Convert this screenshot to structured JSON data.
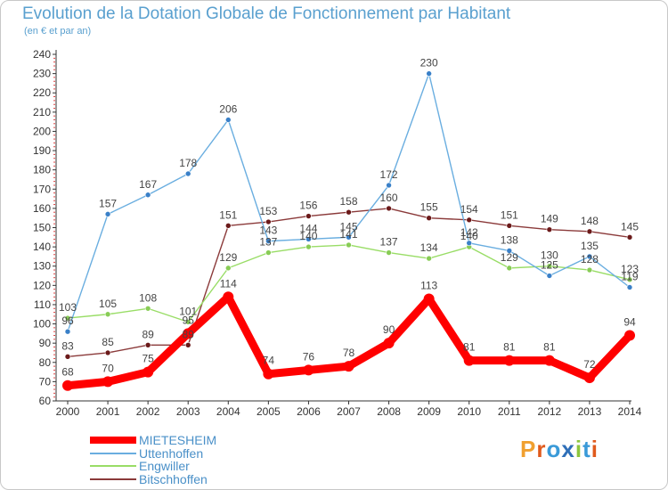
{
  "title": "Evolution de la Dotation Globale de Fonctionnement par Habitant",
  "subtitle": "(en € et par an)",
  "logo": {
    "text": "Proxiti",
    "colors": [
      "#f0a030",
      "#e05a1c",
      "#3a9ad8",
      "#2f6fb8",
      "#8dc63f",
      "#3a9ad8",
      "#e05a1c"
    ]
  },
  "chart_data": {
    "type": "line",
    "title": "Evolution de la Dotation Globale de Fonctionnement par Habitant",
    "subtitle": "(en € et par an)",
    "x": [
      "2000",
      "2001",
      "2002",
      "2003",
      "2004",
      "2005",
      "2006",
      "2007",
      "2008",
      "2009",
      "2010",
      "2011",
      "2012",
      "2013",
      "2014"
    ],
    "ylim": [
      60,
      240
    ],
    "ystep": 10,
    "grid": false,
    "legend_position": "bottom-left",
    "series": [
      {
        "name": "MIETESHEIM",
        "color": "#ff0000",
        "marker_color": "#ff0000",
        "style": "thick",
        "values": [
          68,
          70,
          75,
          95,
          114,
          74,
          76,
          78,
          90,
          113,
          81,
          81,
          81,
          72,
          94
        ],
        "labels": [
          "68",
          "70",
          "75",
          "95",
          "114",
          "74",
          "76",
          "78",
          "90",
          "113",
          "81",
          "81",
          "81",
          "72",
          "94"
        ]
      },
      {
        "name": "Uttenhoffen",
        "color": "#6aaee0",
        "marker_color": "#3a80c8",
        "style": "thin",
        "values": [
          96,
          157,
          167,
          178,
          206,
          143,
          144,
          145,
          172,
          230,
          142,
          138,
          125,
          135,
          119
        ],
        "labels": [
          "96",
          "157",
          "167",
          "178",
          "206",
          "143",
          "144",
          "145",
          "172",
          "230",
          "142",
          "138",
          "125",
          "135",
          "119"
        ]
      },
      {
        "name": "Engwiller",
        "color": "#99dd66",
        "marker_color": "#88cc55",
        "style": "thin",
        "values": [
          103,
          105,
          108,
          101,
          129,
          137,
          140,
          141,
          137,
          134,
          140,
          129,
          130,
          128,
          123
        ],
        "labels": [
          "103",
          "105",
          "108",
          "101",
          "129",
          "137",
          "140",
          "141",
          "137",
          "134",
          "140",
          "129",
          "130",
          "128",
          "123"
        ]
      },
      {
        "name": "Bitschhoffen",
        "color": "#8b3a3a",
        "marker_color": "#6b1a1a",
        "style": "thin",
        "values": [
          83,
          85,
          89,
          89,
          151,
          153,
          156,
          158,
          160,
          155,
          154,
          151,
          149,
          148,
          145
        ],
        "labels": [
          "83",
          "85",
          "89",
          "89",
          "151",
          "153",
          "156",
          "158",
          "160",
          "155",
          "154",
          "151",
          "149",
          "148",
          "145"
        ]
      }
    ]
  }
}
